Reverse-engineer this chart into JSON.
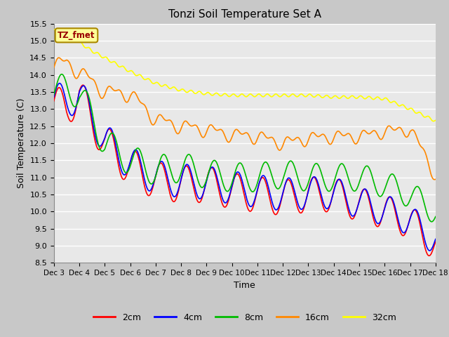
{
  "title": "Tonzi Soil Temperature Set A",
  "xlabel": "Time",
  "ylabel": "Soil Temperature (C)",
  "ylim": [
    8.5,
    15.5
  ],
  "colors": {
    "2cm": "#ff0000",
    "4cm": "#0000ff",
    "8cm": "#00bb00",
    "16cm": "#ff8800",
    "32cm": "#ffff00"
  },
  "annotation_text": "TZ_fmet",
  "annotation_color": "#990000",
  "annotation_bg": "#ffff99",
  "annotation_edge": "#aa8800",
  "fig_bg": "#c8c8c8",
  "plot_bg": "#e8e8e8",
  "grid_color": "#ffffff",
  "tick_labels": [
    "Dec 3",
    "Dec 4",
    "Dec 5",
    "Dec 6",
    "Dec 7",
    "Dec 8",
    "Dec 9",
    "Dec 10",
    "Dec 11",
    "Dec 12",
    "Dec 13",
    "Dec 14",
    "Dec 15",
    "Dec 16",
    "Dec 17",
    "Dec 18"
  ],
  "n_points": 720,
  "line_width": 1.2
}
